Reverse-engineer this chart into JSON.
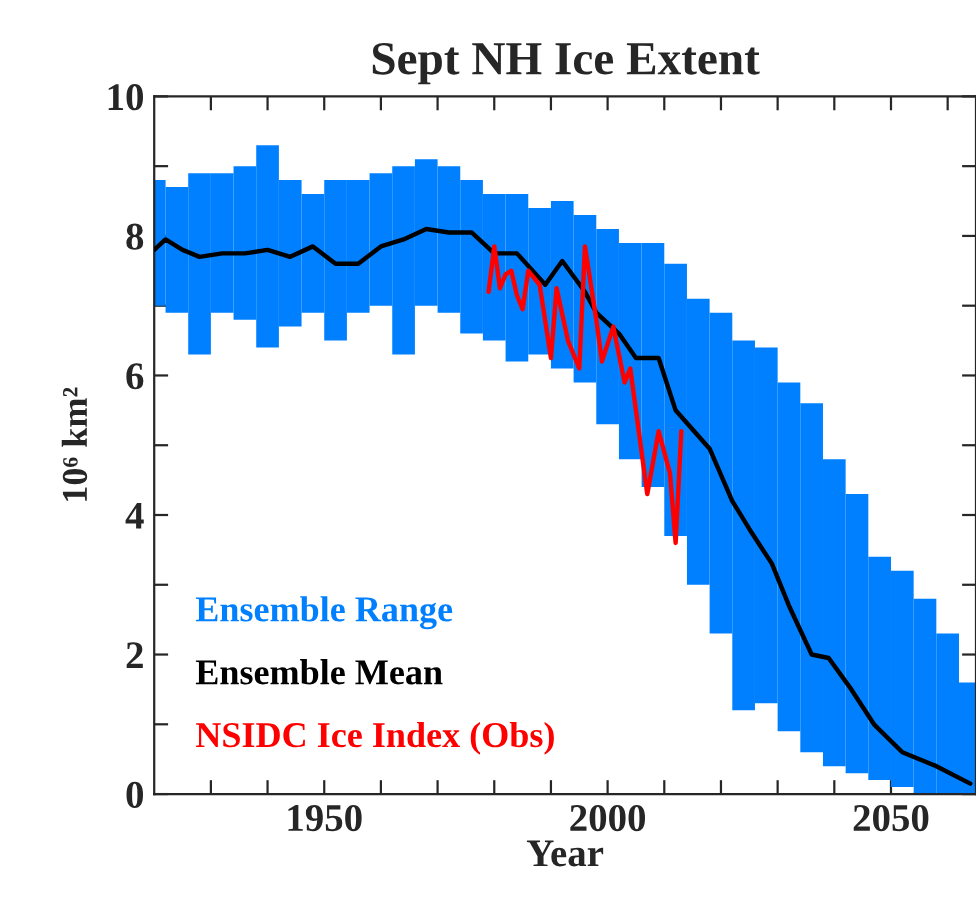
{
  "chart_data": {
    "type": "line",
    "title": "Sept NH Ice Extent",
    "xlabel": "Year",
    "ylabel": "10⁶ km²",
    "xlim": [
      1920,
      2065
    ],
    "ylim": [
      0,
      10
    ],
    "xticks": [
      {
        "value": 1930,
        "label": null
      },
      {
        "value": 1940,
        "label": null
      },
      1950,
      {
        "value": 1960,
        "label": null
      },
      {
        "value": 1970,
        "label": null
      },
      {
        "value": 1980,
        "label": null
      },
      {
        "value": 1990,
        "label": null
      },
      2000,
      {
        "value": 2010,
        "label": null
      },
      {
        "value": 2020,
        "label": null
      },
      {
        "value": 2030,
        "label": null
      },
      {
        "value": 2040,
        "label": null
      },
      2050,
      {
        "value": 2060,
        "label": null
      }
    ],
    "yticks": [
      0,
      {
        "value": 1,
        "label": null
      },
      2,
      {
        "value": 3,
        "label": null
      },
      4,
      {
        "value": 5,
        "label": null
      },
      6,
      {
        "value": 7,
        "label": null
      },
      8,
      {
        "value": 9,
        "label": null
      },
      10
    ],
    "grid": false,
    "legend": "bottom left",
    "series": [
      {
        "name": "Ensemble Range",
        "type": "bar",
        "color": "#0080ff",
        "x": [
          1920,
          1924,
          1928,
          1932,
          1936,
          1940,
          1944,
          1948,
          1952,
          1956,
          1960,
          1964,
          1968,
          1972,
          1976,
          1980,
          1984,
          1988,
          1992,
          1996,
          2000,
          2004,
          2008,
          2012,
          2016,
          2020,
          2024,
          2028,
          2032,
          2036,
          2040,
          2044,
          2048,
          2052,
          2056,
          2060,
          2064
        ],
        "base": [
          7.0,
          6.9,
          6.3,
          6.9,
          6.8,
          6.4,
          6.7,
          6.9,
          6.5,
          6.9,
          7.0,
          6.3,
          7.0,
          6.9,
          6.6,
          6.5,
          6.2,
          6.3,
          6.1,
          5.9,
          5.3,
          4.8,
          4.4,
          3.7,
          3.0,
          2.3,
          1.2,
          1.3,
          0.9,
          0.6,
          0.4,
          0.3,
          0.2,
          0.1,
          0.0,
          0.0,
          0.0
        ],
        "values": [
          1.8,
          1.8,
          2.6,
          2.0,
          2.2,
          2.9,
          2.1,
          1.7,
          2.3,
          1.9,
          1.9,
          2.7,
          2.1,
          2.1,
          2.2,
          2.1,
          2.4,
          2.1,
          2.4,
          2.4,
          2.8,
          3.1,
          3.5,
          3.9,
          4.1,
          4.6,
          5.3,
          5.1,
          5.0,
          5.0,
          4.4,
          4.0,
          3.2,
          3.1,
          2.8,
          2.3,
          1.6
        ]
      },
      {
        "name": "Ensemble Mean",
        "color": "#000000",
        "x": [
          1920,
          1922,
          1925,
          1928,
          1932,
          1936,
          1940,
          1944,
          1948,
          1952,
          1956,
          1960,
          1964,
          1968,
          1972,
          1976,
          1980,
          1984,
          1989,
          1992,
          1996,
          1998,
          2002,
          2005,
          2009,
          2012,
          2018,
          2022,
          2025,
          2029,
          2032,
          2036,
          2039,
          2043,
          2047,
          2052,
          2058,
          2064
        ],
        "values": [
          7.8,
          7.95,
          7.8,
          7.7,
          7.75,
          7.75,
          7.8,
          7.7,
          7.85,
          7.6,
          7.6,
          7.85,
          7.95,
          8.1,
          8.05,
          8.05,
          7.75,
          7.75,
          7.3,
          7.64,
          7.2,
          6.9,
          6.6,
          6.25,
          6.25,
          5.5,
          4.95,
          4.2,
          3.8,
          3.3,
          2.7,
          2.0,
          1.95,
          1.5,
          1.0,
          0.6,
          0.4,
          0.15
        ]
      },
      {
        "name": "NSIDC Ice Index (Obs)",
        "color": "#ff0000",
        "x": [
          1979,
          1980,
          1981,
          1982,
          1983,
          1984,
          1985,
          1986,
          1988,
          1990,
          1991,
          1993,
          1995,
          1996,
          1998,
          1999,
          2001,
          2003,
          2004,
          2005,
          2007,
          2009,
          2011,
          2012,
          2013
        ],
        "values": [
          7.2,
          7.85,
          7.25,
          7.45,
          7.5,
          7.15,
          6.95,
          7.5,
          7.3,
          6.25,
          7.25,
          6.5,
          6.1,
          7.85,
          6.8,
          6.2,
          6.7,
          5.9,
          6.1,
          5.5,
          4.3,
          5.2,
          4.6,
          3.6,
          5.2
        ]
      }
    ]
  }
}
